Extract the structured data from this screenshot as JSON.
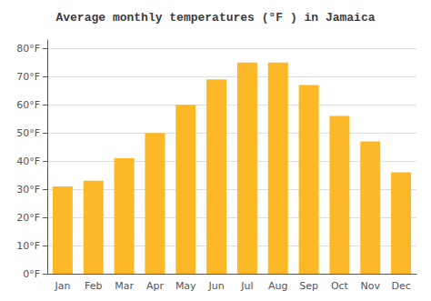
{
  "chart_data": {
    "type": "bar",
    "title": "Average monthly temperatures (°F ) in Jamaica",
    "categories": [
      "Jan",
      "Feb",
      "Mar",
      "Apr",
      "May",
      "Jun",
      "Jul",
      "Aug",
      "Sep",
      "Oct",
      "Nov",
      "Dec"
    ],
    "values": [
      31,
      33,
      41,
      50,
      60,
      69,
      75,
      75,
      67,
      56,
      47,
      36
    ],
    "color": "#FDB827",
    "ylim": [
      0,
      83
    ],
    "yticks": [
      {
        "value": 0,
        "label": "0°F"
      },
      {
        "value": 10,
        "label": "10°F"
      },
      {
        "value": 20,
        "label": "20°F"
      },
      {
        "value": 30,
        "label": "30°F"
      },
      {
        "value": 40,
        "label": "40°F"
      },
      {
        "value": 50,
        "label": "50°F"
      },
      {
        "value": 60,
        "label": "60°F"
      },
      {
        "value": 70,
        "label": "70°F"
      },
      {
        "value": 80,
        "label": "80°F"
      }
    ],
    "grid": true
  }
}
